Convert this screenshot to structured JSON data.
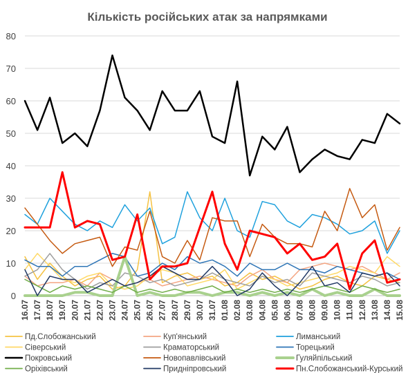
{
  "chart_data": {
    "type": "line",
    "title": "Кількість російських атак за напрямками",
    "xlabel": "",
    "ylabel": "",
    "ylim": [
      0,
      80
    ],
    "yticks": [
      0,
      10,
      20,
      30,
      40,
      50,
      60,
      70,
      80
    ],
    "grid": true,
    "legend_position": "bottom",
    "x": [
      "16.07",
      "17.07",
      "18.07",
      "19.07",
      "20.07",
      "21.07",
      "22.07",
      "23.07",
      "24.07",
      "25.07",
      "26.07",
      "27.07",
      "28.07",
      "29.07",
      "30.07",
      "31.07",
      "01.08",
      "02.08",
      "03.08",
      "04.08",
      "05.08",
      "06.08",
      "07.08",
      "08.08",
      "09.08",
      "10.08",
      "11.08",
      "12.08",
      "13.08",
      "14.08",
      "15.08"
    ],
    "series": [
      {
        "name": "Пд.Слобожанський",
        "color": "#f5c242",
        "width": 1.5,
        "values": [
          12,
          5,
          10,
          6,
          3,
          5,
          6,
          2,
          3,
          8,
          32,
          4,
          6,
          7,
          5,
          6,
          3,
          4,
          7,
          5,
          6,
          4,
          2,
          3,
          5,
          6,
          4,
          3,
          6,
          5,
          4
        ]
      },
      {
        "name": "Куп'янський",
        "color": "#f4a582",
        "width": 1.5,
        "values": [
          6,
          3,
          4,
          4,
          5,
          3,
          7,
          5,
          3,
          4,
          5,
          3,
          4,
          5,
          6,
          5,
          4,
          3,
          6,
          8,
          5,
          4,
          8,
          9,
          10,
          9,
          8,
          9,
          7,
          5,
          7
        ]
      },
      {
        "name": "Лиманський",
        "color": "#1fa1dd",
        "width": 1.5,
        "values": [
          25,
          22,
          30,
          26,
          22,
          20,
          23,
          21,
          28,
          23,
          27,
          16,
          18,
          32,
          24,
          20,
          30,
          20,
          18,
          29,
          28,
          23,
          21,
          25,
          24,
          22,
          19,
          20,
          23,
          13,
          20
        ]
      },
      {
        "name": "Сіверський",
        "color": "#ffd966",
        "width": 1.5,
        "values": [
          8,
          13,
          9,
          5,
          4,
          6,
          7,
          3,
          2,
          3,
          6,
          8,
          7,
          3,
          4,
          5,
          8,
          2,
          4,
          6,
          5,
          3,
          4,
          5,
          6,
          7,
          9,
          8,
          7,
          12,
          9
        ]
      },
      {
        "name": "Краматорський",
        "color": "#9e9e9e",
        "width": 1.5,
        "values": [
          6,
          8,
          13,
          8,
          5,
          2,
          4,
          3,
          7,
          6,
          4,
          5,
          3,
          4,
          5,
          7,
          5,
          4,
          3,
          6,
          4,
          5,
          3,
          7,
          6,
          5,
          4,
          6,
          5,
          3,
          4
        ]
      },
      {
        "name": "Торецький",
        "color": "#2e75b6",
        "width": 1.5,
        "values": [
          11,
          9,
          9,
          6,
          9,
          9,
          11,
          13,
          12,
          6,
          7,
          10,
          8,
          12,
          10,
          11,
          9,
          6,
          10,
          8,
          8,
          10,
          8,
          8,
          7,
          9,
          8,
          7,
          6,
          7,
          5
        ]
      },
      {
        "name": "Покровський",
        "color": "#000000",
        "width": 2.5,
        "values": [
          60,
          51,
          61,
          47,
          50,
          46,
          57,
          74,
          61,
          57,
          51,
          63,
          57,
          57,
          63,
          49,
          47,
          66,
          37,
          49,
          45,
          52,
          38,
          42,
          45,
          43,
          42,
          48,
          47,
          56,
          53
        ]
      },
      {
        "name": "Новопавлівський",
        "color": "#c55a11",
        "width": 1.5,
        "values": [
          27,
          22,
          17,
          13,
          16,
          17,
          18,
          9,
          15,
          14,
          26,
          12,
          10,
          17,
          11,
          24,
          23,
          23,
          12,
          22,
          18,
          16,
          16,
          15,
          26,
          20,
          33,
          24,
          28,
          14,
          21
        ]
      },
      {
        "name": "Гуляйпільський",
        "color": "#a9d18e",
        "width": 4,
        "values": [
          0,
          0,
          0,
          0,
          1,
          1,
          0,
          0,
          12,
          0,
          1,
          0,
          0,
          1,
          1,
          0,
          1,
          1,
          0,
          1,
          0,
          1,
          0,
          2,
          0,
          1,
          0,
          0,
          2,
          0,
          0
        ]
      },
      {
        "name": "Оріхівський",
        "color": "#70ad47",
        "width": 1.5,
        "values": [
          5,
          3,
          1,
          3,
          2,
          3,
          2,
          1,
          3,
          1,
          2,
          1,
          2,
          1,
          2,
          3,
          1,
          2,
          1,
          2,
          1,
          2,
          1,
          2,
          3,
          2,
          1,
          3,
          2,
          1,
          2
        ]
      },
      {
        "name": "Придніпровський",
        "color": "#203864",
        "width": 1.5,
        "values": [
          8,
          0,
          6,
          5,
          5,
          1,
          3,
          5,
          3,
          4,
          6,
          9,
          7,
          5,
          5,
          9,
          5,
          0,
          2,
          7,
          3,
          0,
          4,
          9,
          3,
          4,
          1,
          7,
          6,
          7,
          3
        ]
      },
      {
        "name": "Пн.Слобожанський-Курський",
        "color": "#ff0000",
        "width": 3,
        "values": [
          21,
          21,
          21,
          38,
          21,
          23,
          22,
          11,
          12,
          25,
          5,
          9,
          9,
          10,
          21,
          32,
          16,
          8,
          20,
          19,
          18,
          13,
          16,
          11,
          12,
          16,
          2,
          13,
          17,
          4,
          5
        ]
      }
    ]
  }
}
